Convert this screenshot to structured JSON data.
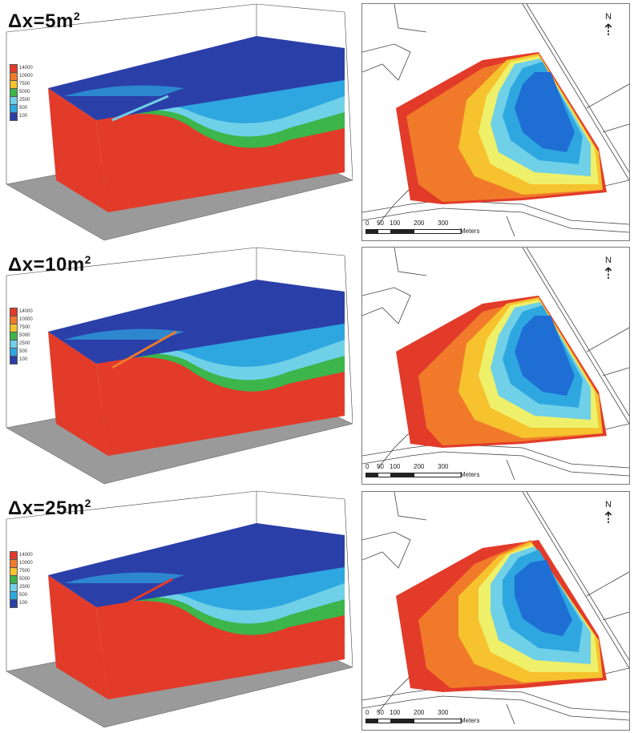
{
  "panels": [
    {
      "label_prefix": "Δx=",
      "label_value": "5m",
      "label_exp": "2",
      "legend": [
        "14000",
        "10000",
        "7500",
        "5000",
        "2500",
        "500",
        "100"
      ],
      "map": {
        "north": "N",
        "scale_ticks": [
          "0",
          "50",
          "100",
          "200",
          "300"
        ],
        "scale_unit": "Meters"
      }
    },
    {
      "label_prefix": "Δx=",
      "label_value": "10m",
      "label_exp": "2",
      "legend": [
        "14000",
        "10000",
        "7500",
        "5000",
        "2500",
        "500",
        "100"
      ],
      "map": {
        "north": "N",
        "scale_ticks": [
          "0",
          "50",
          "100",
          "200",
          "300"
        ],
        "scale_unit": "Meters"
      }
    },
    {
      "label_prefix": "Δx=",
      "label_value": "25m",
      "label_exp": "2",
      "legend": [
        "14000",
        "10000",
        "7500",
        "5000",
        "2500",
        "500",
        "100"
      ],
      "map": {
        "north": "N",
        "scale_ticks": [
          "0",
          "50",
          "100",
          "200",
          "300"
        ],
        "scale_unit": "Meters"
      }
    }
  ],
  "colors": {
    "red": "#e23b2a",
    "orange": "#f07a2a",
    "yellow": "#f6c22e",
    "lightyellow": "#eef06a",
    "green": "#3cb54a",
    "cyan": "#6fd0e8",
    "lightblue": "#2ea7e0",
    "blue": "#1f6ed4",
    "darkblue": "#2b3fa8"
  }
}
